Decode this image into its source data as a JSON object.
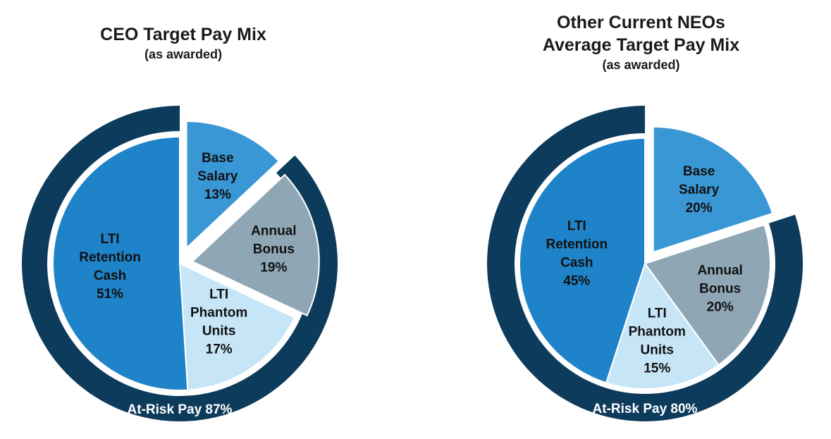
{
  "chart_data": [
    {
      "type": "pie",
      "title": "CEO Target Pay Mix",
      "subtitle": "(as awarded)",
      "slices": [
        {
          "label": [
            "Base",
            "Salary"
          ],
          "value": 13,
          "value_label": "13%",
          "color": "#3a97d6"
        },
        {
          "label": [
            "Annual",
            "Bonus"
          ],
          "value": 19,
          "value_label": "19%",
          "color": "#8fa7b5"
        },
        {
          "label": [
            "LTI",
            "Phantom",
            "Units"
          ],
          "value": 17,
          "value_label": "17%",
          "color": "#c6e6f8"
        },
        {
          "label": [
            "LTI",
            "Retention",
            "Cash"
          ],
          "value": 51,
          "value_label": "51%",
          "color": "#1e83c8"
        }
      ],
      "outer_ring": {
        "label": "At-Risk Pay 87%",
        "value": 87,
        "color": "#0d3b5c"
      }
    },
    {
      "type": "pie",
      "title": [
        "Other Current NEOs",
        "Average Target Pay Mix"
      ],
      "subtitle": "(as awarded)",
      "slices": [
        {
          "label": [
            "Base",
            "Salary"
          ],
          "value": 20,
          "value_label": "20%",
          "color": "#3a97d6"
        },
        {
          "label": [
            "Annual",
            "Bonus"
          ],
          "value": 20,
          "value_label": "20%",
          "color": "#8fa7b5"
        },
        {
          "label": [
            "LTI",
            "Phantom",
            "Units"
          ],
          "value": 15,
          "value_label": "15%",
          "color": "#c6e6f8"
        },
        {
          "label": [
            "LTI",
            "Retention",
            "Cash"
          ],
          "value": 45,
          "value_label": "45%",
          "color": "#1e83c8"
        }
      ],
      "outer_ring": {
        "label": "At-Risk Pay 80%",
        "value": 80,
        "color": "#0d3b5c"
      }
    }
  ]
}
